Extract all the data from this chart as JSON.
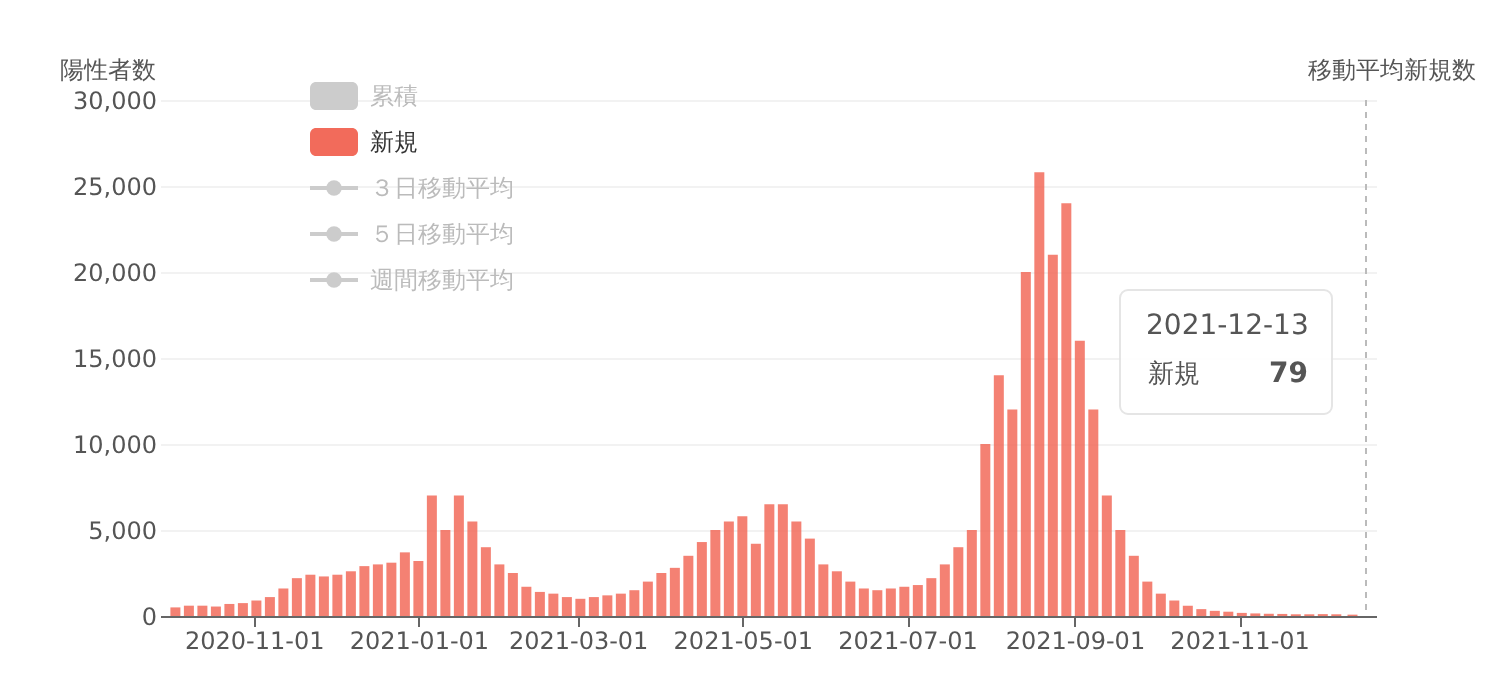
{
  "chart_data": {
    "type": "bar",
    "ylabel": "陽性者数",
    "y2label": "移動平均新規数",
    "x": [
      "2020-10-03",
      "2020-10-08",
      "2020-10-13",
      "2020-10-18",
      "2020-10-23",
      "2020-10-28",
      "2020-11-02",
      "2020-11-07",
      "2020-11-12",
      "2020-11-17",
      "2020-11-22",
      "2020-11-27",
      "2020-12-02",
      "2020-12-07",
      "2020-12-12",
      "2020-12-17",
      "2020-12-22",
      "2020-12-27",
      "2021-01-01",
      "2021-01-06",
      "2021-01-11",
      "2021-01-16",
      "2021-01-21",
      "2021-01-26",
      "2021-01-31",
      "2021-02-05",
      "2021-02-10",
      "2021-02-15",
      "2021-02-20",
      "2021-02-25",
      "2021-03-02",
      "2021-03-07",
      "2021-03-12",
      "2021-03-17",
      "2021-03-22",
      "2021-03-27",
      "2021-04-01",
      "2021-04-06",
      "2021-04-11",
      "2021-04-16",
      "2021-04-21",
      "2021-04-26",
      "2021-05-01",
      "2021-05-06",
      "2021-05-11",
      "2021-05-16",
      "2021-05-21",
      "2021-05-26",
      "2021-05-31",
      "2021-06-05",
      "2021-06-10",
      "2021-06-15",
      "2021-06-20",
      "2021-06-25",
      "2021-06-30",
      "2021-07-05",
      "2021-07-10",
      "2021-07-15",
      "2021-07-20",
      "2021-07-25",
      "2021-07-30",
      "2021-08-04",
      "2021-08-09",
      "2021-08-14",
      "2021-08-19",
      "2021-08-24",
      "2021-08-29",
      "2021-09-03",
      "2021-09-08",
      "2021-09-13",
      "2021-09-18",
      "2021-09-23",
      "2021-09-28",
      "2021-10-03",
      "2021-10-08",
      "2021-10-13",
      "2021-10-18",
      "2021-10-23",
      "2021-10-28",
      "2021-11-02",
      "2021-11-07",
      "2021-11-12",
      "2021-11-17",
      "2021-11-22",
      "2021-11-27",
      "2021-12-02",
      "2021-12-07",
      "2021-12-13"
    ],
    "series": [
      {
        "name": "累積",
        "color": "#cccccc",
        "values": [
          null,
          null,
          null,
          null,
          null,
          null,
          null,
          null,
          null,
          null,
          null,
          null,
          null,
          null,
          null,
          null,
          null,
          null,
          null,
          null,
          null,
          null,
          null,
          null,
          null,
          null,
          null,
          null,
          null,
          null,
          null,
          null,
          null,
          null,
          null,
          null,
          null,
          null,
          null,
          null,
          null,
          null,
          null,
          null,
          null,
          null,
          null,
          null,
          null,
          null,
          null,
          null,
          null,
          null,
          null,
          null,
          null,
          null,
          null,
          null,
          null,
          null,
          null,
          null,
          null,
          null,
          null,
          null,
          null,
          null,
          null,
          null,
          null,
          null,
          null,
          null,
          null,
          null,
          null,
          null,
          null,
          null,
          null,
          null,
          null,
          null,
          null,
          null
        ]
      },
      {
        "name": "新規",
        "color": "#f26b5b",
        "values": [
          500,
          600,
          600,
          550,
          700,
          750,
          900,
          1100,
          1600,
          2200,
          2400,
          2300,
          2400,
          2600,
          2900,
          3000,
          3100,
          3700,
          3200,
          7000,
          5000,
          7000,
          5500,
          4000,
          3000,
          2500,
          1700,
          1400,
          1300,
          1100,
          1000,
          1100,
          1200,
          1300,
          1500,
          2000,
          2500,
          2800,
          3500,
          4300,
          5000,
          5500,
          5800,
          4200,
          6500,
          6500,
          5500,
          4500,
          3000,
          2600,
          2000,
          1600,
          1500,
          1600,
          1700,
          1800,
          2200,
          3000,
          4000,
          5000,
          10000,
          14000,
          12000,
          20000,
          25800,
          21000,
          24000,
          16000,
          12000,
          7000,
          5000,
          3500,
          2000,
          1300,
          900,
          600,
          400,
          300,
          250,
          180,
          150,
          130,
          120,
          100,
          100,
          110,
          100,
          79
        ]
      },
      {
        "name": "３日移動平均",
        "type": "line",
        "color": "#cccccc",
        "values": [
          null,
          null,
          null,
          null,
          null,
          null,
          null,
          null,
          null,
          null,
          null,
          null,
          null,
          null,
          null,
          null,
          null,
          null,
          null,
          null,
          null,
          null,
          null,
          null,
          null,
          null,
          null,
          null,
          null,
          null,
          null,
          null,
          null,
          null,
          null,
          null,
          null,
          null,
          null,
          null,
          null,
          null,
          null,
          null,
          null,
          null,
          null,
          null,
          null,
          null,
          null,
          null,
          null,
          null,
          null,
          null,
          null,
          null,
          null,
          null,
          null,
          null,
          null,
          null,
          null,
          null,
          null,
          null,
          null,
          null,
          null,
          null,
          null,
          null,
          null,
          null,
          null,
          null,
          null,
          null,
          null,
          null,
          null,
          null,
          null,
          null,
          null,
          null
        ]
      },
      {
        "name": "５日移動平均",
        "type": "line",
        "color": "#cccccc",
        "values": [
          null,
          null,
          null,
          null,
          null,
          null,
          null,
          null,
          null,
          null,
          null,
          null,
          null,
          null,
          null,
          null,
          null,
          null,
          null,
          null,
          null,
          null,
          null,
          null,
          null,
          null,
          null,
          null,
          null,
          null,
          null,
          null,
          null,
          null,
          null,
          null,
          null,
          null,
          null,
          null,
          null,
          null,
          null,
          null,
          null,
          null,
          null,
          null,
          null,
          null,
          null,
          null,
          null,
          null,
          null,
          null,
          null,
          null,
          null,
          null,
          null,
          null,
          null,
          null,
          null,
          null,
          null,
          null,
          null,
          null,
          null,
          null,
          null,
          null,
          null,
          null,
          null,
          null,
          null,
          null,
          null,
          null,
          null,
          null,
          null,
          null,
          null,
          null
        ]
      },
      {
        "name": "週間移動平均",
        "type": "line",
        "color": "#cccccc",
        "values": [
          null,
          null,
          null,
          null,
          null,
          null,
          null,
          null,
          null,
          null,
          null,
          null,
          null,
          null,
          null,
          null,
          null,
          null,
          null,
          null,
          null,
          null,
          null,
          null,
          null,
          null,
          null,
          null,
          null,
          null,
          null,
          null,
          null,
          null,
          null,
          null,
          null,
          null,
          null,
          null,
          null,
          null,
          null,
          null,
          null,
          null,
          null,
          null,
          null,
          null,
          null,
          null,
          null,
          null,
          null,
          null,
          null,
          null,
          null,
          null,
          null,
          null,
          null,
          null,
          null,
          null,
          null,
          null,
          null,
          null,
          null,
          null,
          null,
          null,
          null,
          null,
          null,
          null,
          null,
          null,
          null,
          null,
          null,
          null,
          null,
          null,
          null,
          null
        ]
      }
    ],
    "xlim": [
      "2020-10-01",
      "2021-12-18"
    ],
    "xticks": [
      "2020-11-01",
      "2021-01-01",
      "2021-03-01",
      "2021-05-01",
      "2021-07-01",
      "2021-09-01",
      "2021-11-01"
    ],
    "ylim": [
      0,
      30000
    ],
    "yticks": [
      0,
      {
        "value": 5000,
        "label": "5,000"
      },
      {
        "value": 10000,
        "label": "10,000"
      },
      {
        "value": 15000,
        "label": "15,000"
      },
      {
        "value": 20000,
        "label": "20,000"
      },
      {
        "value": 25000,
        "label": "25,000"
      },
      {
        "value": 30000,
        "label": "30,000"
      }
    ],
    "grid": "y",
    "legend": "top left",
    "annotations": [
      "2021-12-13",
      "79"
    ]
  }
}
